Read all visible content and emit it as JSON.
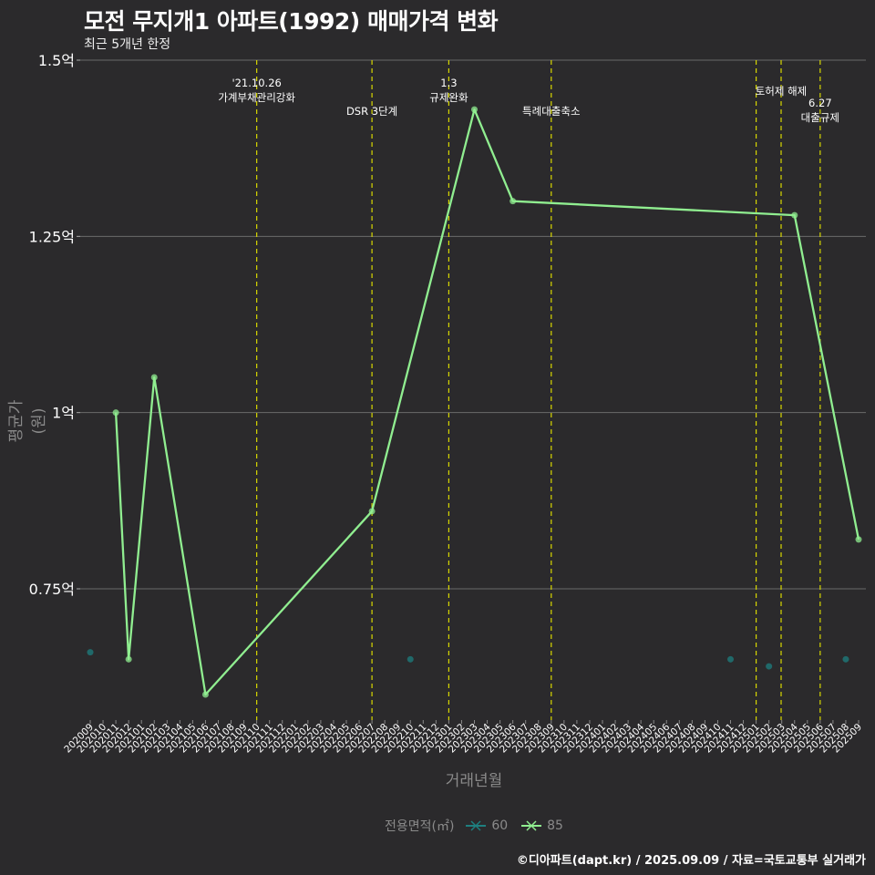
{
  "chart_data": {
    "type": "line",
    "title": "모전 무지개1 아파트(1992) 매매가격 변화",
    "subtitle": "최근 5개년 한정",
    "xlabel": "거래년월",
    "ylabel": "평균가(원)",
    "y_ticks": [
      {
        "value": 0.75,
        "label": "0.75억"
      },
      {
        "value": 1.0,
        "label": "1억"
      },
      {
        "value": 1.25,
        "label": "1.25억"
      },
      {
        "value": 1.5,
        "label": "1.5억"
      }
    ],
    "ylim": [
      0.57,
      1.5
    ],
    "categories": [
      "202009",
      "202010",
      "202011",
      "202012",
      "202101",
      "202102",
      "202103",
      "202104",
      "202105",
      "202106",
      "202107",
      "202108",
      "202109",
      "202110",
      "202111",
      "202112",
      "202201",
      "202202",
      "202203",
      "202204",
      "202205",
      "202206",
      "202207",
      "202208",
      "202209",
      "202210",
      "202211",
      "202212",
      "202301",
      "202302",
      "202303",
      "202304",
      "202305",
      "202306",
      "202307",
      "202308",
      "202309",
      "202310",
      "202311",
      "202312",
      "202401",
      "202402",
      "202403",
      "202404",
      "202405",
      "202406",
      "202407",
      "202408",
      "202409",
      "202410",
      "202411",
      "202412",
      "202501",
      "202502",
      "202503",
      "202504",
      "202505",
      "202506",
      "202507",
      "202508",
      "202509"
    ],
    "series": [
      {
        "name": "60",
        "color": "#1e7f7f",
        "mode": "points",
        "points": [
          {
            "x": "202009",
            "y": 0.66
          },
          {
            "x": "202210",
            "y": 0.65
          },
          {
            "x": "202411",
            "y": 0.65
          },
          {
            "x": "202502",
            "y": 0.64
          },
          {
            "x": "202508",
            "y": 0.65
          }
        ]
      },
      {
        "name": "85",
        "color": "#90ee90",
        "mode": "line",
        "points": [
          {
            "x": "202011",
            "y": 1.0
          },
          {
            "x": "202012",
            "y": 0.65
          },
          {
            "x": "202102",
            "y": 1.05
          },
          {
            "x": "202106",
            "y": 0.6
          },
          {
            "x": "202207",
            "y": 0.86
          },
          {
            "x": "202303",
            "y": 1.43
          },
          {
            "x": "202306",
            "y": 1.3
          },
          {
            "x": "202504",
            "y": 1.28
          },
          {
            "x": "202509",
            "y": 0.82
          }
        ]
      }
    ],
    "events": [
      {
        "x": "202110",
        "offset": 0,
        "lines": [
          "'21.10.26",
          "가계부채관리강화"
        ],
        "row": 0
      },
      {
        "x": "202207",
        "offset": 0,
        "lines": [
          "DSR 3단계"
        ],
        "row": 2
      },
      {
        "x": "202301",
        "offset": 0,
        "lines": [
          "1.3",
          "규제완화"
        ],
        "row": 0
      },
      {
        "x": "202309",
        "offset": 0,
        "lines": [
          "특례대출축소"
        ],
        "row": 2
      },
      {
        "x": "202502",
        "offset": -1,
        "lines": [],
        "row": 1
      },
      {
        "x": "202503",
        "offset": -0.05,
        "lines": [
          "토허제 해제"
        ],
        "row": 1
      },
      {
        "x": "202506",
        "offset": 0,
        "lines": [
          "6.27",
          "대출규제"
        ],
        "row": 1.6
      }
    ],
    "legend": {
      "title": "전용면적(㎡)",
      "items": [
        "60",
        "85"
      ]
    }
  },
  "caption": "©디아파트(dapt.kr) / 2025.09.09 / 자료=국토교통부 실거래가"
}
